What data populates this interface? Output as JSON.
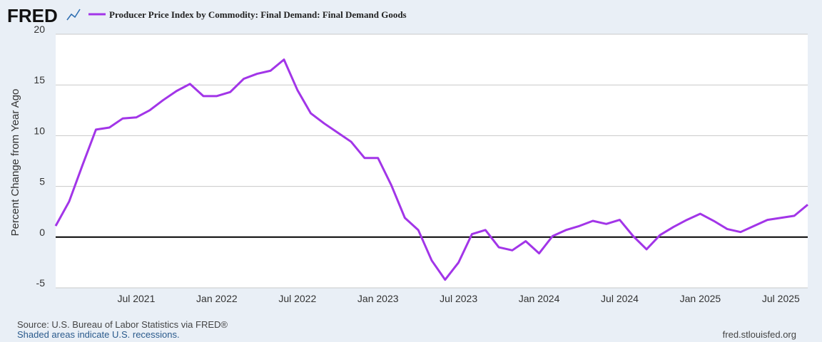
{
  "logo": "FRED",
  "chart_data": {
    "type": "line",
    "title": "Producer Price Index by Commodity: Final Demand: Final Demand Goods",
    "ylabel": "Percent Change from Year Ago",
    "categories": [
      null,
      null,
      null,
      null,
      null,
      null,
      "Jul 2021",
      null,
      null,
      null,
      null,
      null,
      "Jan 2022",
      null,
      null,
      null,
      null,
      null,
      "Jul 2022",
      null,
      null,
      null,
      null,
      null,
      "Jan 2023",
      null,
      null,
      null,
      null,
      null,
      "Jul 2023",
      null,
      null,
      null,
      null,
      null,
      "Jan 2024",
      null,
      null,
      null,
      null,
      null,
      "Jul 2024",
      null,
      null,
      null,
      null,
      null,
      "Jan 2025",
      null,
      null,
      null,
      null,
      null,
      "Jul 2025",
      null,
      null
    ],
    "series": [
      {
        "name": "Producer Price Index by Commodity: Final Demand: Final Demand Goods",
        "color": "#a235e8",
        "values": [
          1.1,
          3.5,
          7.1,
          10.6,
          10.8,
          11.7,
          11.8,
          12.5,
          13.5,
          14.4,
          15.1,
          13.9,
          13.9,
          14.3,
          15.6,
          16.1,
          16.4,
          17.5,
          14.5,
          12.2,
          11.2,
          10.3,
          9.4,
          7.8,
          7.8,
          5.1,
          1.9,
          0.7,
          -2.3,
          -4.2,
          -2.5,
          0.3,
          0.7,
          -1.0,
          -1.3,
          -0.4,
          -1.6,
          0.1,
          0.7,
          1.1,
          1.6,
          1.3,
          1.7,
          0.1,
          -1.2,
          0.2,
          1.0,
          1.7,
          2.3,
          1.6,
          0.8,
          0.5,
          1.1,
          1.7,
          1.9,
          2.1,
          3.2
        ]
      }
    ],
    "ylim": [
      -5,
      20
    ],
    "yticks": [
      -5,
      0,
      5,
      10,
      15,
      20
    ],
    "grid": true,
    "source": "Source: U.S. Bureau of Labor Statistics via FRED®",
    "note": "Shaded areas indicate U.S. recessions.",
    "url": "fred.stlouisfed.org"
  }
}
